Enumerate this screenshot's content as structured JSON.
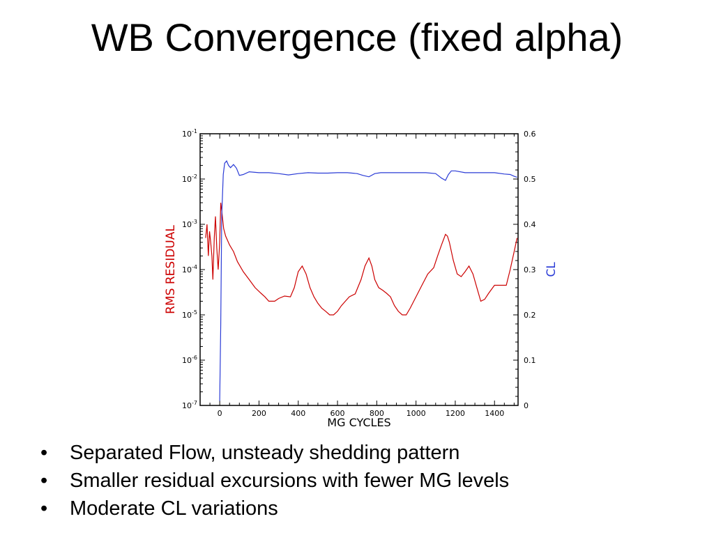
{
  "slide": {
    "title": "WB Convergence (fixed alpha)",
    "bullets": [
      "Separated Flow, unsteady shedding pattern",
      "Smaller residual excursions with fewer MG levels",
      "Moderate CL variations"
    ],
    "bullet_glyph": "•"
  },
  "chart_data": {
    "type": "line",
    "xlabel": "MG CYCLES",
    "ylabel_left": "RMS RESIDUAL",
    "ylabel_right": "CL",
    "xlim": [
      -100,
      1520
    ],
    "x_ticks": [
      0,
      200,
      400,
      600,
      800,
      1000,
      1200,
      1400
    ],
    "x_tick_labels": [
      "0",
      "200",
      "400",
      "600",
      "800",
      "1000",
      "1200",
      "1400"
    ],
    "y_left_scale": "log",
    "y_left_ticks": [
      1e-07,
      1e-06,
      1e-05,
      0.0001,
      0.001,
      0.01,
      0.1
    ],
    "y_left_tick_labels": [
      {
        "base": "10",
        "exp": "-7"
      },
      {
        "base": "10",
        "exp": "-6"
      },
      {
        "base": "10",
        "exp": "-5"
      },
      {
        "base": "10",
        "exp": "-4"
      },
      {
        "base": "10",
        "exp": "-3"
      },
      {
        "base": "10",
        "exp": "-2"
      },
      {
        "base": "10",
        "exp": "-1"
      }
    ],
    "y_right_ticks": [
      0,
      0.1,
      0.2,
      0.3,
      0.4,
      0.5,
      0.6
    ],
    "y_right_tick_labels": [
      "0",
      "0.1",
      "0.2",
      "0.3",
      "0.4",
      "0.5",
      "0.6"
    ],
    "ylim_right": [
      0,
      0.6
    ],
    "series": [
      {
        "name": "RMS RESIDUAL",
        "axis": "left",
        "color": "#cc0000",
        "points": [
          [
            -72,
            0.0005
          ],
          [
            -65,
            0.001
          ],
          [
            -58,
            0.0002
          ],
          [
            -52,
            0.0007
          ],
          [
            -46,
            0.0004
          ],
          [
            -40,
            0.0002
          ],
          [
            -35,
            6e-05
          ],
          [
            -28,
            0.0005
          ],
          [
            -22,
            0.0015
          ],
          [
            -15,
            0.0003
          ],
          [
            -8,
            0.0001
          ],
          [
            0,
            0.0004
          ],
          [
            5,
            0.003
          ],
          [
            10,
            0.002
          ],
          [
            20,
            0.0008
          ],
          [
            30,
            0.00055
          ],
          [
            50,
            0.00035
          ],
          [
            70,
            0.00025
          ],
          [
            90,
            0.00015
          ],
          [
            120,
            9e-05
          ],
          [
            150,
            6e-05
          ],
          [
            180,
            4e-05
          ],
          [
            210,
            3e-05
          ],
          [
            230,
            2.5e-05
          ],
          [
            250,
            2e-05
          ],
          [
            280,
            2e-05
          ],
          [
            300,
            2.3e-05
          ],
          [
            330,
            2.6e-05
          ],
          [
            360,
            2.5e-05
          ],
          [
            380,
            4e-05
          ],
          [
            400,
            9e-05
          ],
          [
            420,
            0.00012
          ],
          [
            440,
            8e-05
          ],
          [
            460,
            4e-05
          ],
          [
            480,
            2.5e-05
          ],
          [
            500,
            1.8e-05
          ],
          [
            520,
            1.4e-05
          ],
          [
            540,
            1.2e-05
          ],
          [
            560,
            1e-05
          ],
          [
            580,
            1e-05
          ],
          [
            600,
            1.2e-05
          ],
          [
            620,
            1.6e-05
          ],
          [
            640,
            2e-05
          ],
          [
            660,
            2.5e-05
          ],
          [
            690,
            2.9e-05
          ],
          [
            720,
            6e-05
          ],
          [
            740,
            0.00012
          ],
          [
            760,
            0.00018
          ],
          [
            775,
            0.00012
          ],
          [
            790,
            6e-05
          ],
          [
            810,
            4e-05
          ],
          [
            830,
            3.5e-05
          ],
          [
            850,
            3e-05
          ],
          [
            870,
            2.5e-05
          ],
          [
            890,
            1.6e-05
          ],
          [
            910,
            1.2e-05
          ],
          [
            930,
            1e-05
          ],
          [
            950,
            1e-05
          ],
          [
            970,
            1.4e-05
          ],
          [
            1000,
            2.5e-05
          ],
          [
            1030,
            4.5e-05
          ],
          [
            1060,
            8e-05
          ],
          [
            1090,
            0.00011
          ],
          [
            1110,
            0.0002
          ],
          [
            1130,
            0.00035
          ],
          [
            1150,
            0.0006
          ],
          [
            1160,
            0.00055
          ],
          [
            1170,
            0.0004
          ],
          [
            1190,
            0.00016
          ],
          [
            1210,
            8e-05
          ],
          [
            1230,
            7e-05
          ],
          [
            1250,
            9e-05
          ],
          [
            1270,
            0.00012
          ],
          [
            1290,
            8e-05
          ],
          [
            1310,
            4e-05
          ],
          [
            1330,
            2e-05
          ],
          [
            1350,
            2.2e-05
          ],
          [
            1370,
            3e-05
          ],
          [
            1400,
            4.5e-05
          ],
          [
            1430,
            4.5e-05
          ],
          [
            1460,
            4.5e-05
          ],
          [
            1480,
            0.0001
          ],
          [
            1500,
            0.00025
          ],
          [
            1515,
            0.0005
          ]
        ]
      },
      {
        "name": "CL",
        "axis": "right",
        "color": "#2a3bd6",
        "points": [
          [
            0,
            0.01
          ],
          [
            5,
            0.18
          ],
          [
            10,
            0.42
          ],
          [
            18,
            0.51
          ],
          [
            25,
            0.535
          ],
          [
            35,
            0.54
          ],
          [
            45,
            0.53
          ],
          [
            55,
            0.525
          ],
          [
            70,
            0.532
          ],
          [
            85,
            0.524
          ],
          [
            100,
            0.508
          ],
          [
            120,
            0.51
          ],
          [
            150,
            0.516
          ],
          [
            200,
            0.514
          ],
          [
            250,
            0.514
          ],
          [
            300,
            0.512
          ],
          [
            350,
            0.509
          ],
          [
            400,
            0.512
          ],
          [
            450,
            0.514
          ],
          [
            500,
            0.513
          ],
          [
            550,
            0.513
          ],
          [
            600,
            0.514
          ],
          [
            650,
            0.514
          ],
          [
            700,
            0.512
          ],
          [
            730,
            0.508
          ],
          [
            760,
            0.505
          ],
          [
            790,
            0.512
          ],
          [
            820,
            0.514
          ],
          [
            900,
            0.514
          ],
          [
            1000,
            0.514
          ],
          [
            1050,
            0.514
          ],
          [
            1100,
            0.512
          ],
          [
            1130,
            0.502
          ],
          [
            1150,
            0.497
          ],
          [
            1165,
            0.51
          ],
          [
            1180,
            0.518
          ],
          [
            1200,
            0.518
          ],
          [
            1250,
            0.514
          ],
          [
            1300,
            0.514
          ],
          [
            1350,
            0.514
          ],
          [
            1400,
            0.514
          ],
          [
            1450,
            0.511
          ],
          [
            1480,
            0.51
          ],
          [
            1500,
            0.506
          ],
          [
            1515,
            0.504
          ]
        ]
      }
    ]
  }
}
